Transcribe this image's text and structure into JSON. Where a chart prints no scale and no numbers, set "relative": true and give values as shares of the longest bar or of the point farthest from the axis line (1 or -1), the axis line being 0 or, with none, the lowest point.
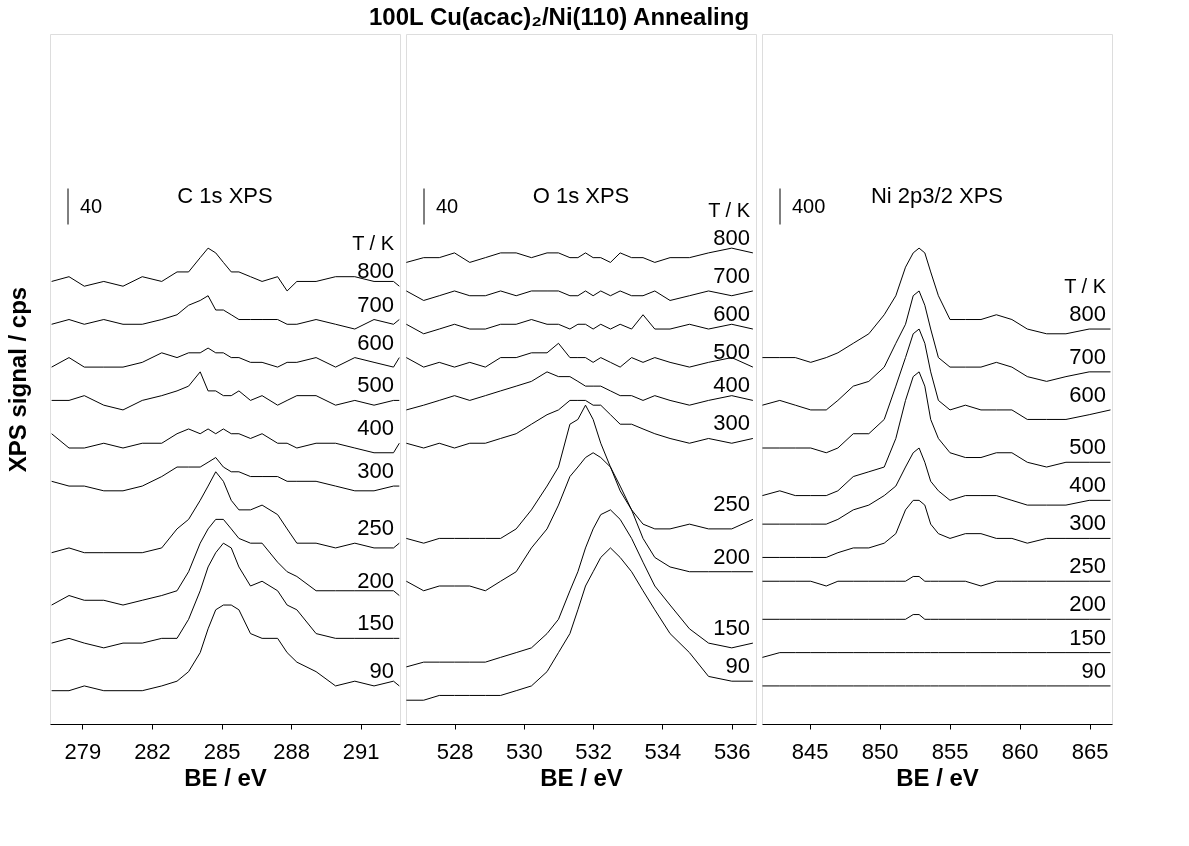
{
  "chart_data": [
    {
      "type": "line",
      "relative": true,
      "title": "C 1s XPS",
      "xlabel": "BE / eV",
      "ylabel": "XPS signal / cps",
      "legend_title": "T / K",
      "annotations": [
        "40"
      ],
      "xlim": [
        277.6,
        292.7
      ],
      "xticks": [
        279,
        282,
        285,
        288,
        291
      ],
      "x": [
        277.67,
        278.42,
        279.08,
        279.92,
        280.75,
        281.58,
        282.42,
        283.08,
        283.58,
        284.08,
        284.42,
        284.75,
        285.08,
        285.42,
        285.75,
        286.25,
        286.75,
        287.42,
        287.83,
        288.25,
        289.08,
        289.92,
        290.75,
        291.58,
        292.42,
        292.67
      ],
      "series": [
        {
          "name": "90",
          "color": "#000000",
          "values": [
            0.07,
            0.07,
            0.08,
            0.07,
            0.07,
            0.07,
            0.08,
            0.09,
            0.11,
            0.15,
            0.2,
            0.24,
            0.25,
            0.25,
            0.24,
            0.19,
            0.18,
            0.18,
            0.15,
            0.13,
            0.11,
            0.08,
            0.09,
            0.08,
            0.09,
            0.08
          ]
        },
        {
          "name": "150",
          "color": "#000000",
          "values": [
            0.17,
            0.18,
            0.17,
            0.16,
            0.17,
            0.17,
            0.18,
            0.18,
            0.22,
            0.28,
            0.33,
            0.36,
            0.38,
            0.37,
            0.33,
            0.29,
            0.3,
            0.28,
            0.25,
            0.24,
            0.19,
            0.18,
            0.18,
            0.18,
            0.18,
            0.18
          ]
        },
        {
          "name": "200",
          "color": "#000000",
          "values": [
            0.25,
            0.27,
            0.26,
            0.26,
            0.25,
            0.26,
            0.27,
            0.28,
            0.32,
            0.38,
            0.41,
            0.43,
            0.43,
            0.41,
            0.39,
            0.38,
            0.38,
            0.34,
            0.32,
            0.31,
            0.28,
            0.28,
            0.28,
            0.28,
            0.28,
            0.27
          ]
        },
        {
          "name": "250",
          "color": "#000000",
          "values": [
            0.36,
            0.37,
            0.36,
            0.36,
            0.36,
            0.36,
            0.37,
            0.41,
            0.43,
            0.47,
            0.5,
            0.53,
            0.51,
            0.47,
            0.45,
            0.45,
            0.46,
            0.44,
            0.41,
            0.38,
            0.38,
            0.37,
            0.38,
            0.37,
            0.37,
            0.38
          ]
        },
        {
          "name": "300",
          "color": "#000000",
          "values": [
            0.51,
            0.5,
            0.5,
            0.49,
            0.49,
            0.5,
            0.52,
            0.54,
            0.54,
            0.54,
            0.55,
            0.56,
            0.54,
            0.53,
            0.53,
            0.52,
            0.52,
            0.52,
            0.51,
            0.51,
            0.51,
            0.5,
            0.49,
            0.49,
            0.5,
            0.5
          ]
        },
        {
          "name": "400",
          "color": "#000000",
          "values": [
            0.61,
            0.58,
            0.58,
            0.59,
            0.58,
            0.59,
            0.59,
            0.61,
            0.62,
            0.61,
            0.62,
            0.61,
            0.62,
            0.61,
            0.61,
            0.6,
            0.61,
            0.59,
            0.59,
            0.58,
            0.59,
            0.59,
            0.58,
            0.57,
            0.57,
            0.59
          ]
        },
        {
          "name": "500",
          "color": "#000000",
          "values": [
            0.68,
            0.68,
            0.69,
            0.67,
            0.66,
            0.68,
            0.69,
            0.7,
            0.71,
            0.74,
            0.7,
            0.7,
            0.69,
            0.69,
            0.7,
            0.68,
            0.69,
            0.67,
            0.68,
            0.69,
            0.69,
            0.67,
            0.68,
            0.67,
            0.68,
            0.68
          ]
        },
        {
          "name": "600",
          "color": "#000000",
          "values": [
            0.75,
            0.77,
            0.75,
            0.75,
            0.75,
            0.76,
            0.78,
            0.77,
            0.78,
            0.78,
            0.79,
            0.78,
            0.78,
            0.77,
            0.77,
            0.76,
            0.76,
            0.75,
            0.76,
            0.76,
            0.77,
            0.75,
            0.77,
            0.76,
            0.75,
            0.77
          ]
        },
        {
          "name": "700",
          "color": "#000000",
          "values": [
            0.84,
            0.85,
            0.84,
            0.85,
            0.84,
            0.84,
            0.85,
            0.86,
            0.88,
            0.89,
            0.9,
            0.87,
            0.87,
            0.86,
            0.85,
            0.85,
            0.85,
            0.85,
            0.84,
            0.84,
            0.85,
            0.84,
            0.83,
            0.85,
            0.84,
            0.85
          ]
        },
        {
          "name": "800",
          "color": "#000000",
          "values": [
            0.93,
            0.94,
            0.92,
            0.93,
            0.92,
            0.94,
            0.93,
            0.95,
            0.95,
            0.98,
            1.0,
            0.99,
            0.97,
            0.95,
            0.95,
            0.94,
            0.93,
            0.94,
            0.91,
            0.93,
            0.93,
            0.94,
            0.94,
            0.93,
            0.93,
            0.92
          ]
        }
      ]
    },
    {
      "type": "line",
      "relative": true,
      "title": "100L Cu(acac)₂/Ni(110) Annealing",
      "subtitle": "O 1s XPS",
      "xlabel": "BE / eV",
      "legend_title": "T / K",
      "annotations": [
        "40"
      ],
      "xlim": [
        526.6,
        536.7
      ],
      "xticks": [
        528,
        530,
        532,
        534,
        536
      ],
      "x": [
        526.61,
        527.11,
        527.56,
        528.0,
        528.44,
        528.89,
        529.33,
        529.78,
        530.22,
        530.67,
        531.0,
        531.33,
        531.56,
        531.78,
        532.0,
        532.22,
        532.5,
        532.78,
        533.11,
        533.44,
        533.78,
        534.22,
        534.78,
        535.33,
        536.0,
        536.61
      ],
      "series": [
        {
          "name": "90",
          "color": "#000000",
          "values": [
            0.05,
            0.05,
            0.06,
            0.06,
            0.06,
            0.06,
            0.06,
            0.07,
            0.08,
            0.11,
            0.15,
            0.19,
            0.24,
            0.29,
            0.32,
            0.35,
            0.37,
            0.35,
            0.32,
            0.28,
            0.24,
            0.19,
            0.15,
            0.1,
            0.09,
            0.09
          ]
        },
        {
          "name": "150",
          "color": "#000000",
          "values": [
            0.12,
            0.13,
            0.13,
            0.13,
            0.13,
            0.13,
            0.14,
            0.15,
            0.16,
            0.19,
            0.22,
            0.28,
            0.32,
            0.37,
            0.41,
            0.44,
            0.45,
            0.43,
            0.39,
            0.34,
            0.29,
            0.25,
            0.2,
            0.17,
            0.16,
            0.17
          ]
        },
        {
          "name": "200",
          "color": "#000000",
          "values": [
            0.3,
            0.28,
            0.29,
            0.29,
            0.29,
            0.28,
            0.3,
            0.32,
            0.37,
            0.41,
            0.46,
            0.52,
            0.54,
            0.56,
            0.57,
            0.56,
            0.54,
            0.49,
            0.45,
            0.39,
            0.35,
            0.33,
            0.32,
            0.32,
            0.32,
            0.32
          ]
        },
        {
          "name": "250",
          "color": "#000000",
          "values": [
            0.39,
            0.38,
            0.39,
            0.39,
            0.39,
            0.39,
            0.39,
            0.41,
            0.45,
            0.5,
            0.54,
            0.63,
            0.64,
            0.67,
            0.64,
            0.59,
            0.54,
            0.5,
            0.45,
            0.42,
            0.41,
            0.41,
            0.42,
            0.41,
            0.41,
            0.43
          ]
        },
        {
          "name": "300",
          "color": "#000000",
          "values": [
            0.59,
            0.58,
            0.59,
            0.58,
            0.59,
            0.59,
            0.6,
            0.61,
            0.63,
            0.65,
            0.66,
            0.68,
            0.68,
            0.68,
            0.67,
            0.67,
            0.65,
            0.63,
            0.63,
            0.62,
            0.61,
            0.6,
            0.59,
            0.6,
            0.59,
            0.6
          ]
        },
        {
          "name": "400",
          "color": "#000000",
          "values": [
            0.66,
            0.67,
            0.68,
            0.69,
            0.68,
            0.69,
            0.7,
            0.71,
            0.72,
            0.74,
            0.73,
            0.73,
            0.72,
            0.71,
            0.71,
            0.71,
            0.7,
            0.69,
            0.69,
            0.68,
            0.69,
            0.68,
            0.67,
            0.68,
            0.69,
            0.68
          ]
        },
        {
          "name": "500",
          "color": "#000000",
          "values": [
            0.77,
            0.75,
            0.76,
            0.75,
            0.76,
            0.75,
            0.77,
            0.77,
            0.78,
            0.78,
            0.8,
            0.77,
            0.77,
            0.77,
            0.76,
            0.77,
            0.76,
            0.75,
            0.77,
            0.76,
            0.77,
            0.76,
            0.75,
            0.76,
            0.77,
            0.75
          ]
        },
        {
          "name": "600",
          "color": "#000000",
          "values": [
            0.84,
            0.82,
            0.83,
            0.84,
            0.83,
            0.83,
            0.84,
            0.84,
            0.85,
            0.84,
            0.84,
            0.83,
            0.84,
            0.84,
            0.83,
            0.84,
            0.83,
            0.84,
            0.83,
            0.86,
            0.83,
            0.83,
            0.84,
            0.83,
            0.84,
            0.83
          ]
        },
        {
          "name": "700",
          "color": "#000000",
          "values": [
            0.91,
            0.89,
            0.9,
            0.91,
            0.9,
            0.9,
            0.91,
            0.9,
            0.91,
            0.91,
            0.91,
            0.9,
            0.9,
            0.91,
            0.9,
            0.91,
            0.9,
            0.91,
            0.9,
            0.9,
            0.91,
            0.89,
            0.9,
            0.91,
            0.9,
            0.91
          ]
        },
        {
          "name": "800",
          "color": "#000000",
          "values": [
            0.97,
            0.98,
            0.98,
            0.99,
            0.97,
            0.98,
            0.99,
            0.99,
            0.98,
            0.99,
            0.99,
            0.98,
            0.98,
            0.99,
            0.98,
            0.98,
            0.97,
            0.99,
            0.98,
            0.98,
            0.97,
            0.98,
            0.98,
            0.99,
            1.0,
            0.99
          ]
        }
      ]
    },
    {
      "type": "line",
      "relative": true,
      "title": "Ni 2p3/2 XPS",
      "xlabel": "BE / eV",
      "legend_title": "T / K",
      "annotations": [
        "400"
      ],
      "xlim": [
        841.6,
        866.6
      ],
      "xticks": [
        845,
        850,
        855,
        860,
        865
      ],
      "x": [
        841.63,
        842.87,
        843.98,
        845.08,
        846.19,
        847.02,
        848.12,
        849.23,
        850.33,
        851.16,
        851.85,
        852.4,
        852.82,
        853.23,
        853.65,
        854.2,
        855.03,
        856.13,
        857.24,
        858.34,
        859.45,
        860.55,
        861.93,
        863.31,
        864.97,
        866.49
      ],
      "series": [
        {
          "name": "90",
          "color": "#000000",
          "values": [
            0.08,
            0.08,
            0.08,
            0.08,
            0.08,
            0.08,
            0.08,
            0.08,
            0.08,
            0.08,
            0.08,
            0.08,
            0.08,
            0.08,
            0.08,
            0.08,
            0.08,
            0.08,
            0.08,
            0.08,
            0.08,
            0.08,
            0.08,
            0.08,
            0.08,
            0.08
          ]
        },
        {
          "name": "150",
          "color": "#000000",
          "values": [
            0.14,
            0.15,
            0.15,
            0.15,
            0.15,
            0.15,
            0.15,
            0.15,
            0.15,
            0.15,
            0.15,
            0.15,
            0.15,
            0.15,
            0.15,
            0.15,
            0.15,
            0.15,
            0.15,
            0.15,
            0.15,
            0.15,
            0.15,
            0.15,
            0.15,
            0.15
          ]
        },
        {
          "name": "200",
          "color": "#000000",
          "values": [
            0.22,
            0.22,
            0.22,
            0.22,
            0.22,
            0.22,
            0.22,
            0.22,
            0.22,
            0.22,
            0.22,
            0.23,
            0.23,
            0.22,
            0.22,
            0.22,
            0.22,
            0.22,
            0.22,
            0.22,
            0.22,
            0.22,
            0.22,
            0.22,
            0.22,
            0.22
          ]
        },
        {
          "name": "250",
          "color": "#000000",
          "values": [
            0.3,
            0.3,
            0.3,
            0.3,
            0.29,
            0.3,
            0.3,
            0.3,
            0.3,
            0.3,
            0.3,
            0.31,
            0.31,
            0.3,
            0.3,
            0.3,
            0.3,
            0.3,
            0.29,
            0.3,
            0.3,
            0.3,
            0.3,
            0.3,
            0.3,
            0.3
          ]
        },
        {
          "name": "300",
          "color": "#000000",
          "values": [
            0.35,
            0.35,
            0.35,
            0.35,
            0.35,
            0.36,
            0.37,
            0.37,
            0.38,
            0.4,
            0.45,
            0.47,
            0.47,
            0.46,
            0.42,
            0.4,
            0.39,
            0.4,
            0.4,
            0.39,
            0.39,
            0.38,
            0.39,
            0.39,
            0.39,
            0.39
          ]
        },
        {
          "name": "400",
          "color": "#000000",
          "values": [
            0.42,
            0.42,
            0.42,
            0.42,
            0.42,
            0.43,
            0.45,
            0.46,
            0.48,
            0.5,
            0.54,
            0.57,
            0.58,
            0.55,
            0.51,
            0.49,
            0.47,
            0.48,
            0.48,
            0.48,
            0.47,
            0.46,
            0.46,
            0.46,
            0.47,
            0.47
          ]
        },
        {
          "name": "500",
          "color": "#000000",
          "values": [
            0.48,
            0.49,
            0.48,
            0.48,
            0.48,
            0.49,
            0.52,
            0.53,
            0.54,
            0.6,
            0.68,
            0.73,
            0.74,
            0.71,
            0.64,
            0.6,
            0.57,
            0.56,
            0.56,
            0.57,
            0.57,
            0.55,
            0.54,
            0.55,
            0.55,
            0.55
          ]
        },
        {
          "name": "600",
          "color": "#000000",
          "values": [
            0.58,
            0.58,
            0.58,
            0.58,
            0.57,
            0.58,
            0.61,
            0.61,
            0.64,
            0.71,
            0.77,
            0.82,
            0.83,
            0.8,
            0.74,
            0.68,
            0.66,
            0.67,
            0.66,
            0.66,
            0.66,
            0.64,
            0.64,
            0.64,
            0.65,
            0.66
          ]
        },
        {
          "name": "700",
          "color": "#000000",
          "values": [
            0.67,
            0.68,
            0.67,
            0.66,
            0.66,
            0.68,
            0.71,
            0.72,
            0.75,
            0.8,
            0.84,
            0.9,
            0.91,
            0.88,
            0.83,
            0.77,
            0.75,
            0.75,
            0.75,
            0.76,
            0.75,
            0.73,
            0.72,
            0.73,
            0.74,
            0.74
          ]
        },
        {
          "name": "800",
          "color": "#000000",
          "values": [
            0.77,
            0.77,
            0.77,
            0.76,
            0.77,
            0.78,
            0.8,
            0.82,
            0.86,
            0.9,
            0.96,
            0.99,
            1.0,
            0.99,
            0.95,
            0.9,
            0.85,
            0.85,
            0.85,
            0.86,
            0.85,
            0.83,
            0.82,
            0.82,
            0.83,
            0.83
          ]
        }
      ]
    }
  ]
}
